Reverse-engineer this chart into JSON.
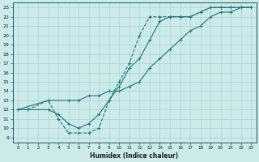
{
  "xlabel": "Humidex (Indice chaleur)",
  "xlim": [
    -0.5,
    23.5
  ],
  "ylim": [
    8.5,
    23.5
  ],
  "xticks": [
    0,
    1,
    2,
    3,
    4,
    5,
    6,
    7,
    8,
    9,
    10,
    11,
    12,
    13,
    14,
    15,
    16,
    17,
    18,
    19,
    20,
    21,
    22,
    23
  ],
  "yticks": [
    9,
    10,
    11,
    12,
    13,
    14,
    15,
    16,
    17,
    18,
    19,
    20,
    21,
    22,
    23
  ],
  "line_color": "#1a7a6e",
  "bg_color": "#cceae8",
  "grid_color_major": "#aad4d0",
  "grid_color_minor": "#aad4d0",
  "line1_x": [
    0,
    1,
    3,
    4,
    5,
    6,
    7,
    8,
    9,
    10,
    11,
    12,
    13,
    14,
    15,
    16,
    17,
    18,
    19,
    20,
    21,
    22,
    23
  ],
  "line1_y": [
    12,
    12,
    12,
    11.5,
    10.5,
    10.0,
    10.5,
    11.5,
    13,
    14.5,
    16.5,
    17.5,
    19.5,
    21.5,
    22,
    22,
    22,
    22.5,
    23,
    23,
    23,
    23,
    23
  ],
  "line2_x": [
    0,
    1,
    3,
    4,
    5,
    6,
    7,
    8,
    9,
    10,
    11,
    12,
    13,
    14,
    15,
    16,
    17,
    18,
    19,
    20,
    21,
    22,
    23
  ],
  "line2_y": [
    12,
    12,
    13,
    11,
    9.5,
    9.5,
    9.5,
    10,
    13,
    15,
    17,
    20,
    22,
    22,
    22,
    22,
    22,
    22.5,
    23,
    23,
    23,
    23,
    23
  ],
  "line3_x": [
    0,
    3,
    5,
    6,
    7,
    8,
    9,
    10,
    11,
    12,
    13,
    14,
    15,
    16,
    17,
    18,
    19,
    20,
    21,
    22,
    23
  ],
  "line3_y": [
    12,
    13,
    13,
    13,
    13.5,
    13.5,
    14,
    14,
    14.5,
    15,
    16.5,
    17.5,
    18.5,
    19.5,
    20.5,
    21,
    22,
    22.5,
    22.5,
    23,
    23
  ]
}
